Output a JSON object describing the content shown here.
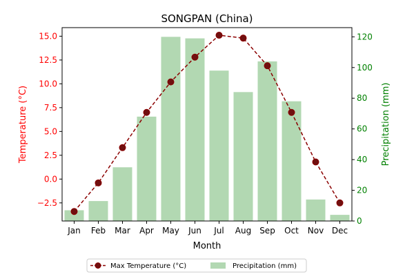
{
  "chart_data": {
    "type": "bar+line",
    "title": "SONGPAN (China)",
    "xlabel": "Month",
    "ylabel_left": "Temperature (°C)",
    "ylabel_right": "Precipitation (mm)",
    "categories": [
      "Jan",
      "Feb",
      "Mar",
      "Apr",
      "May",
      "Jun",
      "Jul",
      "Aug",
      "Sep",
      "Oct",
      "Nov",
      "Dec"
    ],
    "series": [
      {
        "name": "Max Temperature (°C)",
        "type": "line",
        "axis": "left",
        "values": [
          -3.4,
          -0.4,
          3.3,
          7.0,
          10.2,
          12.8,
          15.1,
          14.8,
          11.9,
          7.0,
          1.8,
          -2.5
        ],
        "color": "#8b0000"
      },
      {
        "name": "Precipitation (mm)",
        "type": "bar",
        "axis": "right",
        "values": [
          7,
          13,
          35,
          68,
          120,
          119,
          98,
          84,
          104,
          78,
          14,
          4
        ],
        "color": "#b2d8b2"
      }
    ],
    "ylim_left": [
      -4.4,
      15.9
    ],
    "yticks_left": [
      "−2.5",
      "0.0",
      "2.5",
      "5.0",
      "7.5",
      "10.0",
      "12.5",
      "15.0"
    ],
    "ylim_right": [
      0,
      126
    ],
    "yticks_right": [
      "0",
      "20",
      "40",
      "60",
      "80",
      "100",
      "120"
    ],
    "left_axis_color": "#ff0000",
    "right_axis_color": "#008000",
    "legend_placement": "bottom-center",
    "grid": false
  }
}
